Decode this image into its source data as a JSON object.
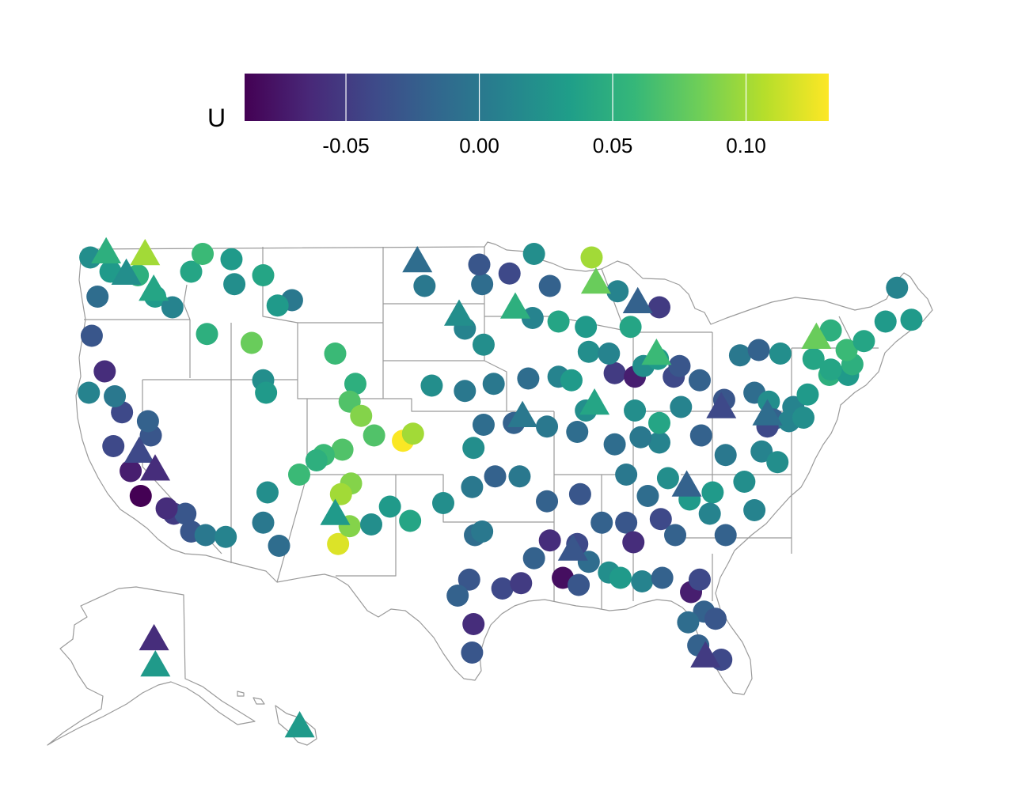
{
  "legend": {
    "title": "U",
    "min": -0.088,
    "max": 0.131,
    "ticks": [
      {
        "value": -0.05,
        "label": "-0.05"
      },
      {
        "value": 0.0,
        "label": "0.00"
      },
      {
        "value": 0.05,
        "label": "0.05"
      },
      {
        "value": 0.1,
        "label": "0.10"
      }
    ],
    "palette": "viridis",
    "stops": [
      "#440154",
      "#482878",
      "#3e4a89",
      "#31688e",
      "#26828e",
      "#1f9e89",
      "#35b779",
      "#6ece58",
      "#b5de2b",
      "#fde725"
    ]
  },
  "map": {
    "region": "United States (contiguous, Alaska, Hawaii)",
    "border_color": "#9a9a9a",
    "marker_shapes": [
      "circle",
      "triangle"
    ]
  },
  "chart_data": {
    "type": "scatter",
    "color_variable": "U",
    "color_range": [
      -0.088,
      0.131
    ],
    "series": [
      {
        "shape": "circle",
        "points": [
          {
            "lon": -124.0,
            "lat": 48.4,
            "u": 0.02
          },
          {
            "lon": -122.6,
            "lat": 47.6,
            "u": 0.03
          },
          {
            "lon": -123.5,
            "lat": 46.2,
            "u": -0.01
          },
          {
            "lon": -123.9,
            "lat": 44.0,
            "u": -0.03
          },
          {
            "lon": -123.0,
            "lat": 42.0,
            "u": -0.06
          },
          {
            "lon": -124.1,
            "lat": 40.8,
            "u": 0.01
          },
          {
            "lon": -122.4,
            "lat": 37.8,
            "u": -0.04
          },
          {
            "lon": -121.2,
            "lat": 36.4,
            "u": -0.07
          },
          {
            "lon": -120.5,
            "lat": 35.0,
            "u": -0.09
          },
          {
            "lon": -118.2,
            "lat": 34.0,
            "u": -0.05
          },
          {
            "lon": -117.0,
            "lat": 33.0,
            "u": -0.03
          },
          {
            "lon": -116.0,
            "lat": 32.8,
            "u": 0.0
          },
          {
            "lon": -119.8,
            "lat": 38.4,
            "u": -0.03
          },
          {
            "lon": -120.0,
            "lat": 39.2,
            "u": -0.02
          },
          {
            "lon": -117.0,
            "lat": 47.6,
            "u": 0.04
          },
          {
            "lon": -116.2,
            "lat": 48.6,
            "u": 0.06
          },
          {
            "lon": -114.2,
            "lat": 48.3,
            "u": 0.03
          },
          {
            "lon": -114.0,
            "lat": 46.9,
            "u": 0.02
          },
          {
            "lon": -112.0,
            "lat": 47.4,
            "u": 0.04
          },
          {
            "lon": -110.0,
            "lat": 46.0,
            "u": 0.0
          },
          {
            "lon": -111.0,
            "lat": 45.7,
            "u": 0.03
          },
          {
            "lon": -115.9,
            "lat": 44.1,
            "u": 0.05
          },
          {
            "lon": -112.8,
            "lat": 43.6,
            "u": 0.08
          },
          {
            "lon": -112.0,
            "lat": 41.5,
            "u": 0.02
          },
          {
            "lon": -111.8,
            "lat": 40.8,
            "u": 0.03
          },
          {
            "lon": -107.0,
            "lat": 43.0,
            "u": 0.06
          },
          {
            "lon": -105.6,
            "lat": 41.3,
            "u": 0.05
          },
          {
            "lon": -106.0,
            "lat": 40.3,
            "u": 0.07
          },
          {
            "lon": -105.2,
            "lat": 39.5,
            "u": 0.09
          },
          {
            "lon": -104.3,
            "lat": 38.4,
            "u": 0.07
          },
          {
            "lon": -102.3,
            "lat": 38.1,
            "u": 0.13
          },
          {
            "lon": -101.6,
            "lat": 38.5,
            "u": 0.1
          },
          {
            "lon": -106.5,
            "lat": 37.6,
            "u": 0.07
          },
          {
            "lon": -107.8,
            "lat": 37.3,
            "u": 0.06
          },
          {
            "lon": -105.9,
            "lat": 35.7,
            "u": 0.09
          },
          {
            "lon": -106.6,
            "lat": 35.1,
            "u": 0.1
          },
          {
            "lon": -106.8,
            "lat": 32.3,
            "u": 0.12
          },
          {
            "lon": -106.0,
            "lat": 33.3,
            "u": 0.09
          },
          {
            "lon": -104.5,
            "lat": 33.4,
            "u": 0.02
          },
          {
            "lon": -103.2,
            "lat": 34.4,
            "u": 0.03
          },
          {
            "lon": -111.7,
            "lat": 35.2,
            "u": 0.02
          },
          {
            "lon": -112.0,
            "lat": 33.5,
            "u": 0.0
          },
          {
            "lon": -110.9,
            "lat": 32.2,
            "u": -0.01
          },
          {
            "lon": -114.6,
            "lat": 32.7,
            "u": 0.01
          },
          {
            "lon": -109.5,
            "lat": 36.2,
            "u": 0.06
          },
          {
            "lon": -108.3,
            "lat": 37.0,
            "u": 0.05
          },
          {
            "lon": -100.8,
            "lat": 46.8,
            "u": 0.0
          },
          {
            "lon": -98.0,
            "lat": 44.4,
            "u": 0.01
          },
          {
            "lon": -100.3,
            "lat": 41.2,
            "u": 0.02
          },
          {
            "lon": -98.0,
            "lat": 40.9,
            "u": 0.0
          },
          {
            "lon": -97.4,
            "lat": 37.7,
            "u": 0.02
          },
          {
            "lon": -96.7,
            "lat": 39.0,
            "u": -0.01
          },
          {
            "lon": -97.5,
            "lat": 35.5,
            "u": 0.0
          },
          {
            "lon": -95.9,
            "lat": 36.1,
            "u": -0.02
          },
          {
            "lon": -99.5,
            "lat": 34.6,
            "u": 0.02
          },
          {
            "lon": -101.8,
            "lat": 33.6,
            "u": 0.04
          },
          {
            "lon": -97.3,
            "lat": 32.8,
            "u": -0.01
          },
          {
            "lon": -96.8,
            "lat": 33.0,
            "u": 0.0
          },
          {
            "lon": -95.4,
            "lat": 29.8,
            "u": -0.04
          },
          {
            "lon": -97.7,
            "lat": 30.3,
            "u": -0.03
          },
          {
            "lon": -98.5,
            "lat": 29.4,
            "u": -0.02
          },
          {
            "lon": -97.4,
            "lat": 27.8,
            "u": -0.06
          },
          {
            "lon": -97.5,
            "lat": 26.2,
            "u": -0.03
          },
          {
            "lon": -94.1,
            "lat": 30.1,
            "u": -0.05
          },
          {
            "lon": -93.2,
            "lat": 31.5,
            "u": -0.02
          },
          {
            "lon": -92.1,
            "lat": 32.5,
            "u": -0.06
          },
          {
            "lon": -91.2,
            "lat": 30.4,
            "u": -0.08
          },
          {
            "lon": -90.1,
            "lat": 30.0,
            "u": -0.03
          },
          {
            "lon": -89.4,
            "lat": 31.3,
            "u": -0.01
          },
          {
            "lon": -88.0,
            "lat": 30.7,
            "u": 0.02
          },
          {
            "lon": -87.2,
            "lat": 30.4,
            "u": 0.03
          },
          {
            "lon": -85.7,
            "lat": 30.2,
            "u": 0.01
          },
          {
            "lon": -84.3,
            "lat": 30.4,
            "u": -0.02
          },
          {
            "lon": -82.3,
            "lat": 29.6,
            "u": -0.07
          },
          {
            "lon": -81.7,
            "lat": 30.3,
            "u": -0.04
          },
          {
            "lon": -81.4,
            "lat": 28.5,
            "u": -0.02
          },
          {
            "lon": -82.5,
            "lat": 27.9,
            "u": -0.01
          },
          {
            "lon": -80.6,
            "lat": 28.1,
            "u": -0.03
          },
          {
            "lon": -81.8,
            "lat": 26.6,
            "u": -0.02
          },
          {
            "lon": -80.2,
            "lat": 25.8,
            "u": -0.04
          },
          {
            "lon": -84.4,
            "lat": 33.7,
            "u": -0.04
          },
          {
            "lon": -83.4,
            "lat": 32.8,
            "u": -0.02
          },
          {
            "lon": -86.8,
            "lat": 33.5,
            "u": -0.03
          },
          {
            "lon": -86.3,
            "lat": 32.4,
            "u": -0.06
          },
          {
            "lon": -88.5,
            "lat": 33.5,
            "u": -0.02
          },
          {
            "lon": -90.2,
            "lat": 32.3,
            "u": -0.04
          },
          {
            "lon": -92.3,
            "lat": 34.7,
            "u": -0.02
          },
          {
            "lon": -94.2,
            "lat": 36.1,
            "u": 0.0
          },
          {
            "lon": -90.0,
            "lat": 35.1,
            "u": -0.03
          },
          {
            "lon": -86.8,
            "lat": 36.2,
            "u": 0.0
          },
          {
            "lon": -85.3,
            "lat": 35.0,
            "u": -0.01
          },
          {
            "lon": -83.9,
            "lat": 36.0,
            "u": 0.02
          },
          {
            "lon": -80.8,
            "lat": 35.2,
            "u": 0.03
          },
          {
            "lon": -78.6,
            "lat": 35.8,
            "u": 0.02
          },
          {
            "lon": -77.9,
            "lat": 34.2,
            "u": 0.01
          },
          {
            "lon": -79.9,
            "lat": 32.8,
            "u": -0.02
          },
          {
            "lon": -81.0,
            "lat": 34.0,
            "u": 0.01
          },
          {
            "lon": -82.4,
            "lat": 34.8,
            "u": 0.03
          },
          {
            "lon": -77.4,
            "lat": 37.5,
            "u": 0.01
          },
          {
            "lon": -76.3,
            "lat": 36.9,
            "u": 0.02
          },
          {
            "lon": -79.9,
            "lat": 37.3,
            "u": 0.0
          },
          {
            "lon": -81.6,
            "lat": 38.4,
            "u": -0.02
          },
          {
            "lon": -84.5,
            "lat": 38.0,
            "u": 0.01
          },
          {
            "lon": -85.8,
            "lat": 38.3,
            "u": 0.0
          },
          {
            "lon": -87.6,
            "lat": 37.9,
            "u": -0.01
          },
          {
            "lon": -89.6,
            "lat": 39.8,
            "u": 0.02
          },
          {
            "lon": -90.2,
            "lat": 38.6,
            "u": -0.01
          },
          {
            "lon": -92.3,
            "lat": 38.9,
            "u": 0.0
          },
          {
            "lon": -94.6,
            "lat": 39.1,
            "u": -0.02
          },
          {
            "lon": -93.6,
            "lat": 41.6,
            "u": -0.01
          },
          {
            "lon": -91.5,
            "lat": 41.7,
            "u": 0.01
          },
          {
            "lon": -90.6,
            "lat": 41.5,
            "u": 0.03
          },
          {
            "lon": -87.6,
            "lat": 41.9,
            "u": -0.05
          },
          {
            "lon": -86.2,
            "lat": 41.7,
            "u": -0.07
          },
          {
            "lon": -86.2,
            "lat": 39.8,
            "u": 0.02
          },
          {
            "lon": -84.5,
            "lat": 39.1,
            "u": 0.04
          },
          {
            "lon": -83.0,
            "lat": 40.0,
            "u": 0.01
          },
          {
            "lon": -81.7,
            "lat": 41.5,
            "u": -0.02
          },
          {
            "lon": -83.5,
            "lat": 41.7,
            "u": -0.04
          },
          {
            "lon": -85.6,
            "lat": 42.3,
            "u": 0.02
          },
          {
            "lon": -84.6,
            "lat": 42.7,
            "u": 0.03
          },
          {
            "lon": -83.1,
            "lat": 42.3,
            "u": -0.03
          },
          {
            "lon": -86.5,
            "lat": 44.5,
            "u": 0.04
          },
          {
            "lon": -84.5,
            "lat": 45.6,
            "u": -0.05
          },
          {
            "lon": -87.4,
            "lat": 46.5,
            "u": 0.01
          },
          {
            "lon": -89.4,
            "lat": 43.1,
            "u": 0.02
          },
          {
            "lon": -88.0,
            "lat": 43.0,
            "u": 0.01
          },
          {
            "lon": -89.6,
            "lat": 44.5,
            "u": 0.03
          },
          {
            "lon": -91.5,
            "lat": 44.8,
            "u": 0.04
          },
          {
            "lon": -93.3,
            "lat": 45.0,
            "u": 0.01
          },
          {
            "lon": -92.1,
            "lat": 46.8,
            "u": -0.02
          },
          {
            "lon": -94.9,
            "lat": 47.5,
            "u": -0.04
          },
          {
            "lon": -96.8,
            "lat": 46.9,
            "u": -0.01
          },
          {
            "lon": -97.0,
            "lat": 48.0,
            "u": -0.03
          },
          {
            "lon": -93.2,
            "lat": 48.6,
            "u": 0.02
          },
          {
            "lon": -89.2,
            "lat": 48.4,
            "u": 0.1
          },
          {
            "lon": -96.7,
            "lat": 43.5,
            "u": 0.02
          },
          {
            "lon": -96.0,
            "lat": 41.3,
            "u": 0.0
          },
          {
            "lon": -80.0,
            "lat": 40.4,
            "u": -0.03
          },
          {
            "lon": -77.9,
            "lat": 40.8,
            "u": -0.01
          },
          {
            "lon": -76.9,
            "lat": 40.3,
            "u": 0.02
          },
          {
            "lon": -75.2,
            "lat": 40.0,
            "u": 0.01
          },
          {
            "lon": -76.6,
            "lat": 39.3,
            "u": -0.02
          },
          {
            "lon": -77.0,
            "lat": 38.9,
            "u": -0.04
          },
          {
            "lon": -74.2,
            "lat": 40.7,
            "u": 0.03
          },
          {
            "lon": -73.8,
            "lat": 42.7,
            "u": 0.04
          },
          {
            "lon": -76.1,
            "lat": 43.0,
            "u": 0.02
          },
          {
            "lon": -78.9,
            "lat": 42.9,
            "u": 0.0
          },
          {
            "lon": -77.6,
            "lat": 43.2,
            "u": -0.02
          },
          {
            "lon": -72.7,
            "lat": 41.8,
            "u": 0.05
          },
          {
            "lon": -71.4,
            "lat": 41.8,
            "u": 0.03
          },
          {
            "lon": -71.1,
            "lat": 42.4,
            "u": 0.05
          },
          {
            "lon": -72.6,
            "lat": 42.1,
            "u": 0.04
          },
          {
            "lon": -71.5,
            "lat": 43.2,
            "u": 0.06
          },
          {
            "lon": -72.6,
            "lat": 44.3,
            "u": 0.05
          },
          {
            "lon": -70.3,
            "lat": 43.7,
            "u": 0.04
          },
          {
            "lon": -68.8,
            "lat": 44.8,
            "u": 0.03
          },
          {
            "lon": -68.0,
            "lat": 46.7,
            "u": 0.01
          },
          {
            "lon": -67.0,
            "lat": 44.9,
            "u": 0.03
          },
          {
            "lon": -75.5,
            "lat": 39.2,
            "u": 0.01
          },
          {
            "lon": -74.5,
            "lat": 39.4,
            "u": 0.02
          },
          {
            "lon": -117.4,
            "lat": 34.0,
            "u": -0.03
          },
          {
            "lon": -118.7,
            "lat": 34.3,
            "u": -0.06
          },
          {
            "lon": -121.8,
            "lat": 39.7,
            "u": -0.04
          },
          {
            "lon": -122.3,
            "lat": 40.6,
            "u": 0.0
          },
          {
            "lon": -120.7,
            "lat": 47.4,
            "u": 0.05
          },
          {
            "lon": -119.5,
            "lat": 46.2,
            "u": 0.03
          },
          {
            "lon": -118.3,
            "lat": 45.6,
            "u": 0.01
          }
        ]
      },
      {
        "shape": "triangle",
        "points": [
          {
            "lon": -122.9,
            "lat": 48.7,
            "u": 0.05
          },
          {
            "lon": -120.2,
            "lat": 48.6,
            "u": 0.1
          },
          {
            "lon": -121.5,
            "lat": 47.5,
            "u": 0.02
          },
          {
            "lon": -119.6,
            "lat": 46.6,
            "u": 0.04
          },
          {
            "lon": -101.3,
            "lat": 48.2,
            "u": -0.01
          },
          {
            "lon": -94.5,
            "lat": 45.6,
            "u": 0.05
          },
          {
            "lon": -88.9,
            "lat": 47.0,
            "u": 0.08
          },
          {
            "lon": -98.4,
            "lat": 45.2,
            "u": 0.02
          },
          {
            "lon": -94.0,
            "lat": 39.5,
            "u": 0.0
          },
          {
            "lon": -89.0,
            "lat": 40.2,
            "u": 0.04
          },
          {
            "lon": -84.7,
            "lat": 43.0,
            "u": 0.06
          },
          {
            "lon": -86.0,
            "lat": 45.9,
            "u": -0.02
          },
          {
            "lon": -73.6,
            "lat": 43.9,
            "u": 0.08
          },
          {
            "lon": -77.0,
            "lat": 39.6,
            "u": -0.01
          },
          {
            "lon": -80.2,
            "lat": 40.0,
            "u": -0.04
          },
          {
            "lon": -107.0,
            "lat": 34.0,
            "u": 0.03
          },
          {
            "lon": -120.6,
            "lat": 37.5,
            "u": -0.04
          },
          {
            "lon": -119.5,
            "lat": 36.5,
            "u": -0.06
          },
          {
            "lon": -90.5,
            "lat": 32.0,
            "u": -0.03
          },
          {
            "lon": -82.6,
            "lat": 35.6,
            "u": -0.02
          },
          {
            "lon": -81.3,
            "lat": 26.0,
            "u": -0.05
          },
          {
            "lon": -152.0,
            "lat": 64.8,
            "u": -0.06
          },
          {
            "lon": -151.5,
            "lat": 61.2,
            "u": 0.03
          },
          {
            "lon": -157.8,
            "lat": 21.3,
            "u": 0.03
          }
        ]
      }
    ]
  }
}
